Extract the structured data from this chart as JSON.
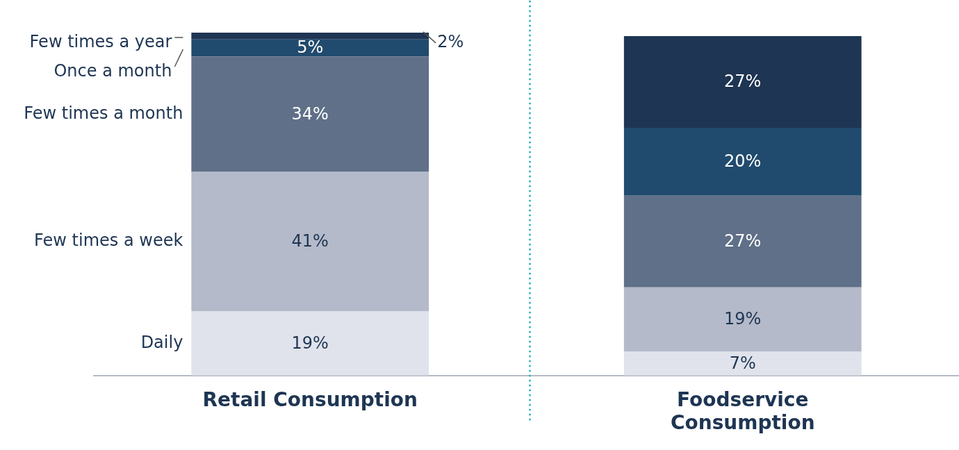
{
  "chart_data": {
    "type": "bar",
    "stacked": true,
    "categories": [
      "Retail Consumption",
      "Foodservice Consumption"
    ],
    "series": [
      {
        "name": "Daily",
        "color": "#e0e3eb",
        "values": [
          19,
          7
        ],
        "value_labels": [
          "19%",
          "7%"
        ]
      },
      {
        "name": "Few times a week",
        "color": "#b4bac9",
        "values": [
          41,
          19
        ],
        "value_labels": [
          "41%",
          "19%"
        ]
      },
      {
        "name": "Few times a month",
        "color": "#5f7088",
        "values": [
          34,
          27
        ],
        "value_labels": [
          "34%",
          "27%"
        ]
      },
      {
        "name": "Once a month",
        "color": "#214b6e",
        "values": [
          5,
          20
        ],
        "value_labels": [
          "5%",
          "20%"
        ]
      },
      {
        "name": "Few times a year",
        "color": "#1e3553",
        "values": [
          2,
          27
        ],
        "value_labels": [
          "2%",
          "27%"
        ]
      }
    ],
    "legend": "left",
    "grid": false,
    "tick_labels": "x"
  }
}
